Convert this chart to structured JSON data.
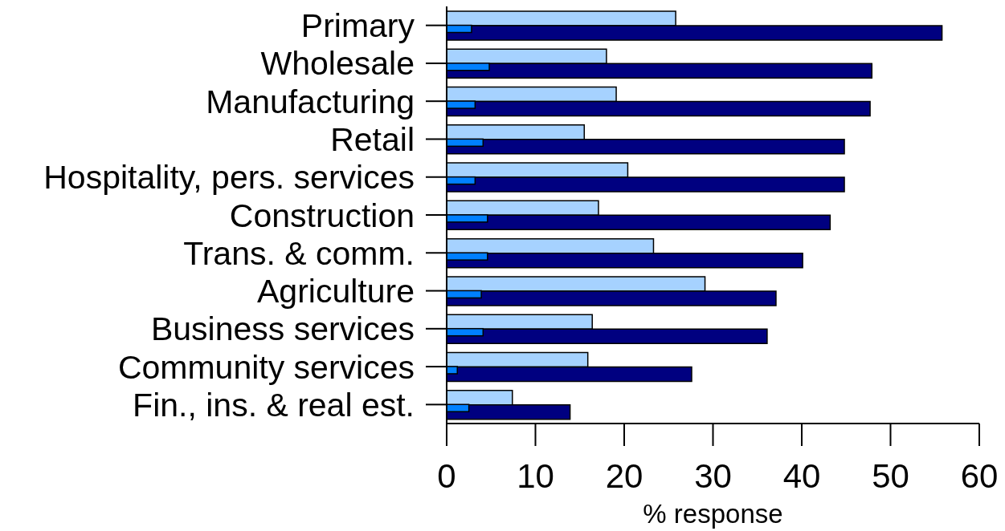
{
  "chart_data": {
    "type": "bar",
    "orientation": "horizontal",
    "xlabel": "% response",
    "categories": [
      "Primary",
      "Wholesale",
      "Manufacturing",
      "Retail",
      "Hospitality, pers. services",
      "Construction",
      "Trans. & comm.",
      "Agriculture",
      "Business services",
      "Community services",
      "Fin., ins. & real est."
    ],
    "series": [
      {
        "color": "#a6d2ff",
        "values": [
          25.8,
          18.0,
          19.1,
          15.5,
          20.4,
          17.1,
          23.3,
          29.1,
          16.4,
          15.9,
          7.4
        ]
      },
      {
        "color": "#0080ff",
        "values": [
          2.8,
          4.8,
          3.2,
          4.1,
          3.2,
          4.6,
          4.6,
          3.9,
          4.1,
          1.2,
          2.5
        ]
      },
      {
        "color": "#000080",
        "values": [
          55.8,
          47.9,
          47.7,
          44.8,
          44.8,
          43.2,
          40.1,
          37.1,
          36.1,
          27.6,
          13.9
        ]
      }
    ],
    "xlim": [
      0,
      60
    ],
    "xticks": [
      0,
      10,
      20,
      30,
      40,
      50,
      60
    ]
  }
}
